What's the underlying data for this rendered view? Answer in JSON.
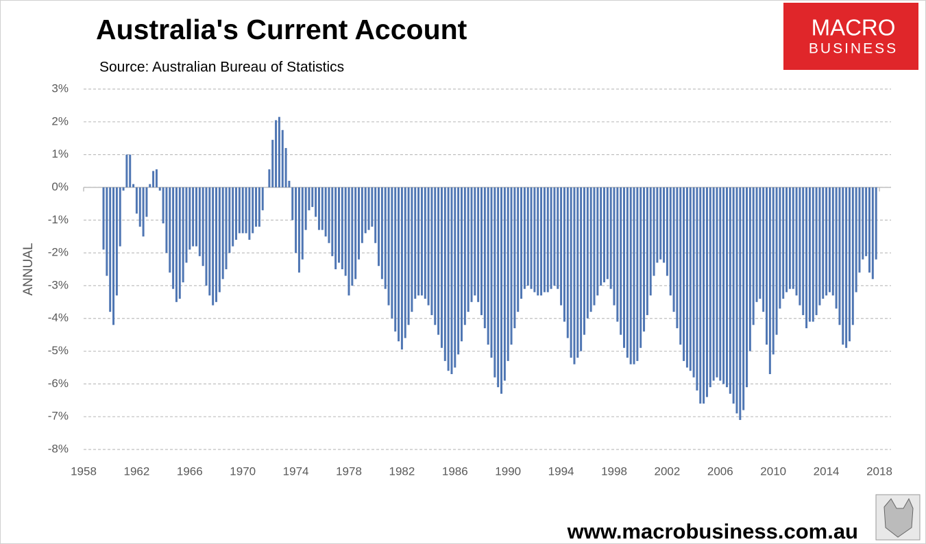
{
  "chart_data": {
    "type": "bar",
    "title": "Australia's Current Account",
    "subtitle": "Source: Australian Bureau of Statistics",
    "y_label": "ANNUAL",
    "color": "#4f76b3",
    "grid": true,
    "xlim": [
      1958,
      2018
    ],
    "xticks": [
      1958,
      1962,
      1966,
      1970,
      1974,
      1978,
      1982,
      1986,
      1990,
      1994,
      1998,
      2002,
      2006,
      2010,
      2014,
      2018
    ],
    "ylim": [
      -8,
      3
    ],
    "yticks": [
      {
        "value": 3,
        "label": "3%"
      },
      {
        "value": 2,
        "label": "2%"
      },
      {
        "value": 1,
        "label": "1%"
      },
      {
        "value": 0,
        "label": "0%"
      },
      {
        "value": -1,
        "label": "-1%"
      },
      {
        "value": -2,
        "label": "-2%"
      },
      {
        "value": -3,
        "label": "-3%"
      },
      {
        "value": -4,
        "label": "-4%"
      },
      {
        "value": -5,
        "label": "-5%"
      },
      {
        "value": -6,
        "label": "-6%"
      },
      {
        "value": -7,
        "label": "-7%"
      },
      {
        "value": -8,
        "label": "-8%"
      }
    ],
    "x": [
      1959.5,
      1959.75,
      1960,
      1960.25,
      1960.5,
      1960.75,
      1961,
      1961.25,
      1961.5,
      1961.75,
      1962,
      1962.25,
      1962.5,
      1962.75,
      1963,
      1963.25,
      1963.5,
      1963.75,
      1964,
      1964.25,
      1964.5,
      1964.75,
      1965,
      1965.25,
      1965.5,
      1965.75,
      1966,
      1966.25,
      1966.5,
      1966.75,
      1967,
      1967.25,
      1967.5,
      1967.75,
      1968,
      1968.25,
      1968.5,
      1968.75,
      1969,
      1969.25,
      1969.5,
      1969.75,
      1970,
      1970.25,
      1970.5,
      1970.75,
      1971,
      1971.25,
      1971.5,
      1971.75,
      1972,
      1972.25,
      1972.5,
      1972.75,
      1973,
      1973.25,
      1973.5,
      1973.75,
      1974,
      1974.25,
      1974.5,
      1974.75,
      1975,
      1975.25,
      1975.5,
      1975.75,
      1976,
      1976.25,
      1976.5,
      1976.75,
      1977,
      1977.25,
      1977.5,
      1977.75,
      1978,
      1978.25,
      1978.5,
      1978.75,
      1979,
      1979.25,
      1979.5,
      1979.75,
      1980,
      1980.25,
      1980.5,
      1980.75,
      1981,
      1981.25,
      1981.5,
      1981.75,
      1982,
      1982.25,
      1982.5,
      1982.75,
      1983,
      1983.25,
      1983.5,
      1983.75,
      1984,
      1984.25,
      1984.5,
      1984.75,
      1985,
      1985.25,
      1985.5,
      1985.75,
      1986,
      1986.25,
      1986.5,
      1986.75,
      1987,
      1987.25,
      1987.5,
      1987.75,
      1988,
      1988.25,
      1988.5,
      1988.75,
      1989,
      1989.25,
      1989.5,
      1989.75,
      1990,
      1990.25,
      1990.5,
      1990.75,
      1991,
      1991.25,
      1991.5,
      1991.75,
      1992,
      1992.25,
      1992.5,
      1992.75,
      1993,
      1993.25,
      1993.5,
      1993.75,
      1994,
      1994.25,
      1994.5,
      1994.75,
      1995,
      1995.25,
      1995.5,
      1995.75,
      1996,
      1996.25,
      1996.5,
      1996.75,
      1997,
      1997.25,
      1997.5,
      1997.75,
      1998,
      1998.25,
      1998.5,
      1998.75,
      1999,
      1999.25,
      1999.5,
      1999.75,
      2000,
      2000.25,
      2000.5,
      2000.75,
      2001,
      2001.25,
      2001.5,
      2001.75,
      2002,
      2002.25,
      2002.5,
      2002.75,
      2003,
      2003.25,
      2003.5,
      2003.75,
      2004,
      2004.25,
      2004.5,
      2004.75,
      2005,
      2005.25,
      2005.5,
      2005.75,
      2006,
      2006.25,
      2006.5,
      2006.75,
      2007,
      2007.25,
      2007.5,
      2007.75,
      2008,
      2008.25,
      2008.5,
      2008.75,
      2009,
      2009.25,
      2009.5,
      2009.75,
      2010,
      2010.25,
      2010.5,
      2010.75,
      2011,
      2011.25,
      2011.5,
      2011.75,
      2012,
      2012.25,
      2012.5,
      2012.75,
      2013,
      2013.25,
      2013.5,
      2013.75,
      2014,
      2014.25,
      2014.5,
      2014.75,
      2015,
      2015.25,
      2015.5,
      2015.75,
      2016,
      2016.25,
      2016.5,
      2016.75,
      2017,
      2017.25,
      2017.5,
      2017.75
    ],
    "values": [
      -1.9,
      -2.7,
      -3.8,
      -4.2,
      -3.3,
      -1.8,
      -0.1,
      1.0,
      1.0,
      0.1,
      -0.8,
      -1.2,
      -1.5,
      -0.9,
      0.1,
      0.5,
      0.55,
      -0.1,
      -1.1,
      -2.0,
      -2.6,
      -3.1,
      -3.5,
      -3.4,
      -2.9,
      -2.3,
      -1.9,
      -1.8,
      -1.8,
      -2.1,
      -2.4,
      -3.0,
      -3.3,
      -3.6,
      -3.5,
      -3.2,
      -2.8,
      -2.5,
      -2.0,
      -1.8,
      -1.6,
      -1.4,
      -1.4,
      -1.4,
      -1.6,
      -1.4,
      -1.2,
      -1.2,
      -0.7,
      0.0,
      0.55,
      1.45,
      2.05,
      2.15,
      1.75,
      1.2,
      0.2,
      -1.0,
      -2.0,
      -2.6,
      -2.2,
      -1.3,
      -0.7,
      -0.6,
      -0.9,
      -1.3,
      -1.3,
      -1.5,
      -1.7,
      -2.1,
      -2.5,
      -2.3,
      -2.5,
      -2.7,
      -3.3,
      -3.0,
      -2.8,
      -2.2,
      -1.7,
      -1.4,
      -1.3,
      -1.2,
      -1.7,
      -2.4,
      -2.8,
      -3.1,
      -3.6,
      -4.0,
      -4.4,
      -4.7,
      -4.95,
      -4.6,
      -4.2,
      -3.8,
      -3.4,
      -3.3,
      -3.3,
      -3.4,
      -3.6,
      -3.9,
      -4.2,
      -4.5,
      -4.9,
      -5.3,
      -5.6,
      -5.7,
      -5.5,
      -5.1,
      -4.7,
      -4.2,
      -3.8,
      -3.5,
      -3.3,
      -3.5,
      -3.9,
      -4.3,
      -4.8,
      -5.2,
      -5.8,
      -6.1,
      -6.3,
      -5.9,
      -5.3,
      -4.8,
      -4.3,
      -3.8,
      -3.4,
      -3.1,
      -3.0,
      -3.1,
      -3.2,
      -3.3,
      -3.3,
      -3.2,
      -3.2,
      -3.1,
      -3.0,
      -3.1,
      -3.6,
      -4.1,
      -4.6,
      -5.2,
      -5.4,
      -5.2,
      -5.0,
      -4.5,
      -4.0,
      -3.8,
      -3.6,
      -3.3,
      -3.0,
      -2.9,
      -2.8,
      -3.1,
      -3.6,
      -4.1,
      -4.5,
      -4.9,
      -5.2,
      -5.4,
      -5.4,
      -5.3,
      -4.9,
      -4.4,
      -3.9,
      -3.3,
      -2.7,
      -2.3,
      -2.2,
      -2.3,
      -2.7,
      -3.3,
      -3.8,
      -4.3,
      -4.8,
      -5.3,
      -5.5,
      -5.6,
      -5.8,
      -6.2,
      -6.6,
      -6.6,
      -6.4,
      -6.1,
      -5.9,
      -5.8,
      -5.9,
      -6.0,
      -6.1,
      -6.3,
      -6.6,
      -6.9,
      -7.1,
      -6.8,
      -6.1,
      -5.0,
      -4.2,
      -3.5,
      -3.4,
      -3.8,
      -4.8,
      -5.7,
      -5.1,
      -4.5,
      -3.7,
      -3.4,
      -3.2,
      -3.1,
      -3.1,
      -3.3,
      -3.6,
      -3.9,
      -4.3,
      -4.1,
      -4.1,
      -3.9,
      -3.6,
      -3.4,
      -3.3,
      -3.2,
      -3.3,
      -3.7,
      -4.2,
      -4.8,
      -4.9,
      -4.7,
      -4.2,
      -3.2,
      -2.6,
      -2.2,
      -2.1,
      -2.6,
      -2.8,
      -2.2
    ]
  },
  "logo": {
    "line1": "MACRO",
    "line2": "BUSINESS"
  },
  "footer": "www.macrobusiness.com.au"
}
